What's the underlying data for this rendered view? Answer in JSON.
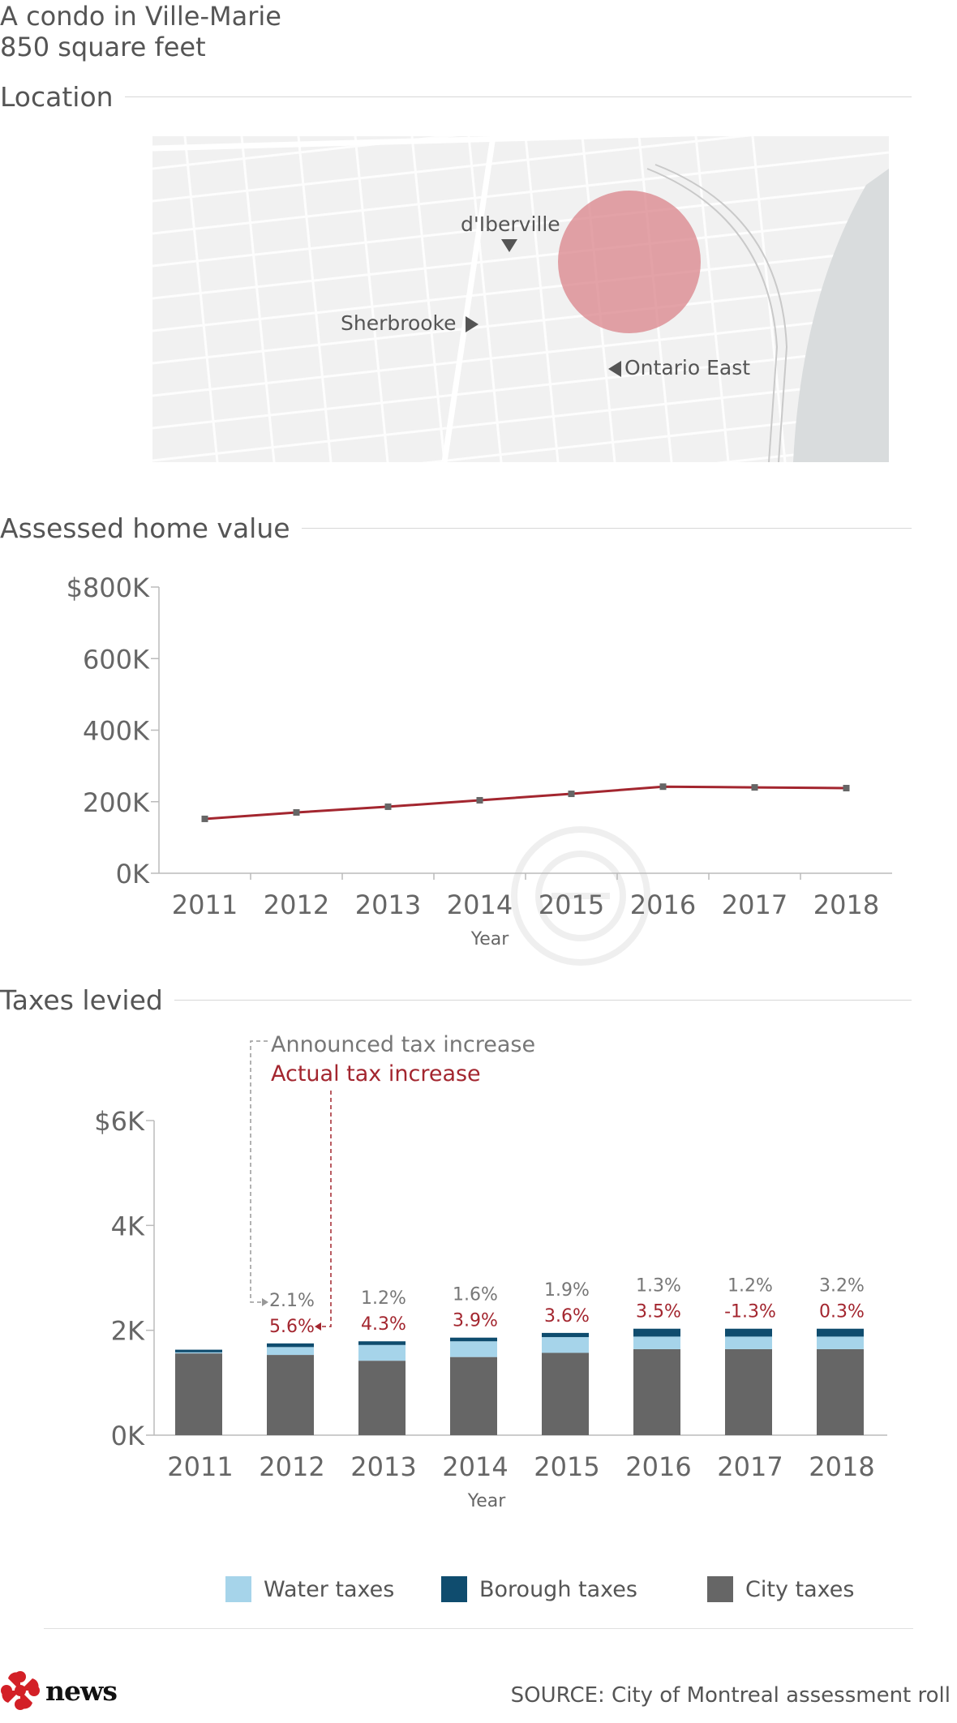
{
  "header": {
    "line1": "A condo in Ville-Marie",
    "line2": "850 square feet"
  },
  "sections": {
    "location": "Location",
    "assessed": "Assessed home value",
    "taxes": "Taxes levied"
  },
  "map": {
    "labels": {
      "diberville": "d'Iberville",
      "sherbrooke": "Sherbrooke",
      "ontario": "Ontario East"
    },
    "colors": {
      "circle": "#d9838a",
      "water": "#d9dcdd",
      "streets": "#ffffff"
    }
  },
  "chart_data": [
    {
      "type": "line",
      "title": "Assessed home value",
      "xlabel": "Year",
      "ylabel": "",
      "x": [
        "2011",
        "2012",
        "2013",
        "2014",
        "2015",
        "2016",
        "2017",
        "2018"
      ],
      "values": [
        152000,
        170000,
        186000,
        204000,
        222000,
        242000,
        240000,
        238000
      ],
      "ylim": [
        0,
        800000
      ],
      "yticks": [
        0,
        200000,
        400000,
        600000,
        800000
      ],
      "ytick_labels": [
        "0K",
        "200K",
        "400K",
        "600K",
        "$800K"
      ],
      "color": "#a3262f"
    },
    {
      "type": "bar",
      "stacked": true,
      "title": "Taxes levied",
      "xlabel": "Year",
      "categories": [
        "2011",
        "2012",
        "2013",
        "2014",
        "2015",
        "2016",
        "2017",
        "2018"
      ],
      "series": [
        {
          "name": "City taxes",
          "color": "#666666",
          "values": [
            1560,
            1530,
            1420,
            1490,
            1570,
            1640,
            1640,
            1640
          ]
        },
        {
          "name": "Water taxes",
          "color": "#a6d4ea",
          "values": [
            20,
            150,
            300,
            300,
            300,
            240,
            240,
            240
          ]
        },
        {
          "name": "Borough taxes",
          "color": "#0f4c6e",
          "values": [
            50,
            70,
            70,
            70,
            80,
            150,
            150,
            150
          ]
        }
      ],
      "announced_increase": [
        "",
        "2.1%",
        "1.2%",
        "1.6%",
        "1.9%",
        "1.3%",
        "1.2%",
        "3.2%"
      ],
      "actual_increase": [
        "",
        "5.6%",
        "4.3%",
        "3.9%",
        "3.6%",
        "3.5%",
        "-1.3%",
        "0.3%"
      ],
      "annotations": {
        "announced": "Announced tax increase",
        "actual": "Actual tax increase"
      },
      "ylim": [
        0,
        6000
      ],
      "yticks": [
        0,
        2000,
        4000,
        6000
      ],
      "ytick_labels": [
        "0K",
        "2K",
        "4K",
        "$6K"
      ],
      "colors": {
        "announced": "#777777",
        "actual": "#a3262f"
      }
    }
  ],
  "legend": [
    {
      "label": "Water taxes",
      "color": "#a6d4ea"
    },
    {
      "label": "Borough taxes",
      "color": "#0f4c6e"
    },
    {
      "label": "City taxes",
      "color": "#666666"
    }
  ],
  "footer": {
    "brand": "news",
    "source": "SOURCE: City of Montreal assessment roll"
  }
}
